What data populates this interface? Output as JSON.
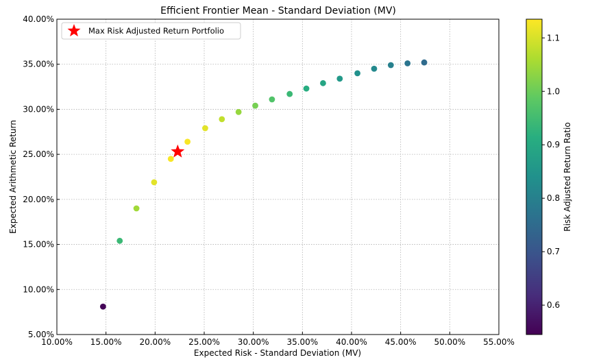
{
  "chart_data": {
    "type": "scatter",
    "title": "Efficient Frontier Mean - Standard Deviation (MV)",
    "xlabel": "Expected Risk - Standard Deviation (MV)",
    "ylabel": "Expected Arithmetic Return",
    "xlim": [
      10,
      55
    ],
    "ylim": [
      5,
      40
    ],
    "x_ticks": [
      "10.00%",
      "15.00%",
      "20.00%",
      "25.00%",
      "30.00%",
      "35.00%",
      "40.00%",
      "45.00%",
      "50.00%",
      "55.00%"
    ],
    "x_tick_values": [
      10,
      15,
      20,
      25,
      30,
      35,
      40,
      45,
      50,
      55
    ],
    "y_ticks": [
      "5.00%",
      "10.00%",
      "15.00%",
      "20.00%",
      "25.00%",
      "30.00%",
      "35.00%",
      "40.00%"
    ],
    "y_tick_values": [
      5,
      10,
      15,
      20,
      25,
      30,
      35,
      40
    ],
    "grid": true,
    "points": [
      {
        "x": 14.7,
        "y": 8.1,
        "c": 0.55
      },
      {
        "x": 16.4,
        "y": 15.4,
        "c": 0.94
      },
      {
        "x": 18.1,
        "y": 19.0,
        "c": 1.05
      },
      {
        "x": 19.9,
        "y": 21.9,
        "c": 1.11
      },
      {
        "x": 21.6,
        "y": 24.5,
        "c": 1.13
      },
      {
        "x": 23.3,
        "y": 26.4,
        "c": 1.13
      },
      {
        "x": 25.1,
        "y": 27.9,
        "c": 1.11
      },
      {
        "x": 26.8,
        "y": 28.9,
        "c": 1.08
      },
      {
        "x": 28.5,
        "y": 29.7,
        "c": 1.04
      },
      {
        "x": 30.2,
        "y": 30.4,
        "c": 1.01
      },
      {
        "x": 31.9,
        "y": 31.1,
        "c": 0.97
      },
      {
        "x": 33.7,
        "y": 31.7,
        "c": 0.94
      },
      {
        "x": 35.4,
        "y": 32.3,
        "c": 0.91
      },
      {
        "x": 37.1,
        "y": 32.9,
        "c": 0.89
      },
      {
        "x": 38.8,
        "y": 33.4,
        "c": 0.86
      },
      {
        "x": 40.6,
        "y": 34.0,
        "c": 0.84
      },
      {
        "x": 42.3,
        "y": 34.5,
        "c": 0.82
      },
      {
        "x": 44.0,
        "y": 34.9,
        "c": 0.8
      },
      {
        "x": 45.7,
        "y": 35.1,
        "c": 0.77
      },
      {
        "x": 47.4,
        "y": 35.2,
        "c": 0.75
      }
    ],
    "highlight": {
      "label": "Max Risk Adjusted Return Portfolio",
      "x": 22.3,
      "y": 25.3,
      "color": "#ff0000"
    },
    "legend_position": "top-left",
    "colorbar": {
      "label": "Risk Adjusted Return Ratio",
      "range": [
        0.545,
        1.135
      ],
      "ticks": [
        "0.6",
        "0.7",
        "0.8",
        "0.9",
        "1.0",
        "1.1"
      ],
      "tick_values": [
        0.6,
        0.7,
        0.8,
        0.9,
        1.0,
        1.1
      ],
      "colormap": "viridis"
    }
  }
}
